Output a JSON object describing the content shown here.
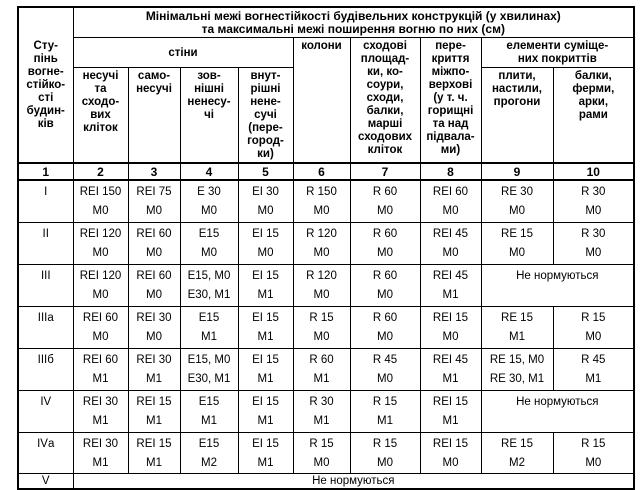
{
  "table": {
    "title": "Мінімальні межі вогнестійкості будівельних конструкцій (у хвилинах)\nта максимальні межі поширення вогню по них (см)",
    "headers": {
      "degree": "Сту-\nпінь\nвогне-\nстійко-\nсті\nбудин-\nків",
      "walls_group": "стіни",
      "walls_sub": [
        "несучі\nта\nсходо-\nвих\nкліток",
        "само-\nнесучі",
        "зов-\nнішні\nненесу-\nчі",
        "внут-\nрішні\nнене-\nсучі\n(пере-\nгород-\nки)"
      ],
      "columns": "колони",
      "stairs": "сходові\nплощад-\nки, ко-\nсоури,\nсходи,\nбалки,\nмарші\nсходових\nкліток",
      "floors": "пере-\nкриття\nміжпо-\nверхові\n(у т. ч.\nгорищні\nта над\nпідвала-\nми)",
      "roof_group": "елементи суміще-\nних покриттів",
      "roof_sub": [
        "плити,\nнастили,\nпрогони",
        "балки,\nферми,\nарки,\nрами"
      ]
    },
    "col_numbers": [
      "1",
      "2",
      "3",
      "4",
      "5",
      "6",
      "7",
      "8",
      "9",
      "10"
    ],
    "rows": [
      {
        "label": "I",
        "cells": [
          {
            "t": "REI 150\nМ0"
          },
          {
            "t": "REI 75\nМ0"
          },
          {
            "t": "E 30\nМ0"
          },
          {
            "t": "EI 30\nМ0"
          },
          {
            "t": "R 150\nМ0"
          },
          {
            "t": "R 60\nМ0"
          },
          {
            "t": "REI 60\nМ0"
          },
          {
            "t": "RE 30\nМ0"
          },
          {
            "t": "R 30\nМ0"
          }
        ]
      },
      {
        "label": "II",
        "cells": [
          {
            "t": "REI 120\nМ0"
          },
          {
            "t": "REI 60\nМ0"
          },
          {
            "t": "E15\nМ0"
          },
          {
            "t": "EI 15\nМ0"
          },
          {
            "t": "R 120\nМ0"
          },
          {
            "t": "R 60\nМ0"
          },
          {
            "t": "REI 45\nМ0"
          },
          {
            "t": "RE 15\nМ0"
          },
          {
            "t": "R 30\nМ0"
          }
        ]
      },
      {
        "label": "III",
        "cells": [
          {
            "t": "REI 120\nМ0"
          },
          {
            "t": "REI 60\nМ0"
          },
          {
            "t": "E15, М0\nE30, М1"
          },
          {
            "t": "EI 15\nМ1"
          },
          {
            "t": "R 120\nМ0"
          },
          {
            "t": "R 60\nМ0"
          },
          {
            "t": "REI 45\nМ1"
          },
          {
            "t": "Не нормуються",
            "span": 2
          }
        ]
      },
      {
        "label": "IIIа",
        "cells": [
          {
            "t": "REI 60\nМ0"
          },
          {
            "t": "REI 30\nМ0"
          },
          {
            "t": "E15\nМ1"
          },
          {
            "t": "EI 15\nМ1"
          },
          {
            "t": "R 15\nМ0"
          },
          {
            "t": "R 60\nМ0"
          },
          {
            "t": "REI 15\nМ0"
          },
          {
            "t": "RE 15\nМ1"
          },
          {
            "t": "R 15\nМ0"
          }
        ]
      },
      {
        "label": "IIIб",
        "cells": [
          {
            "t": "REI 60\nМ1"
          },
          {
            "t": "REI 30\nМ1"
          },
          {
            "t": "E15, М0\nE30, М1"
          },
          {
            "t": "EI 15\nМ1"
          },
          {
            "t": "R 60\nМ1"
          },
          {
            "t": "R 45\nМ0"
          },
          {
            "t": "REI 45\nМ1"
          },
          {
            "t": "RE 15, М0\nRE 30, М1"
          },
          {
            "t": "R 45\nМ1"
          }
        ]
      },
      {
        "label": "IV",
        "cells": [
          {
            "t": "REI 30\nМ1"
          },
          {
            "t": "REI 15\nМ1"
          },
          {
            "t": "E15\nМ1"
          },
          {
            "t": "EI 15\nМ1"
          },
          {
            "t": "R 30\nМ1"
          },
          {
            "t": "R 15\nМ1"
          },
          {
            "t": "REI 15\nМ1"
          },
          {
            "t": "Не нормуються",
            "span": 2
          }
        ]
      },
      {
        "label": "IVа",
        "cells": [
          {
            "t": "REI 30\nМ1"
          },
          {
            "t": "REI 15\nМ1"
          },
          {
            "t": "E15\nМ2"
          },
          {
            "t": "EI 15\nМ1"
          },
          {
            "t": "R 15\nМ0"
          },
          {
            "t": "R 15\nМ0"
          },
          {
            "t": "REI 15\nМ0"
          },
          {
            "t": "RE 15\nМ2"
          },
          {
            "t": "R 15\nМ0"
          }
        ]
      },
      {
        "label": "V",
        "cells": [
          {
            "t": "Не нормуються",
            "span": 9
          }
        ]
      }
    ]
  }
}
